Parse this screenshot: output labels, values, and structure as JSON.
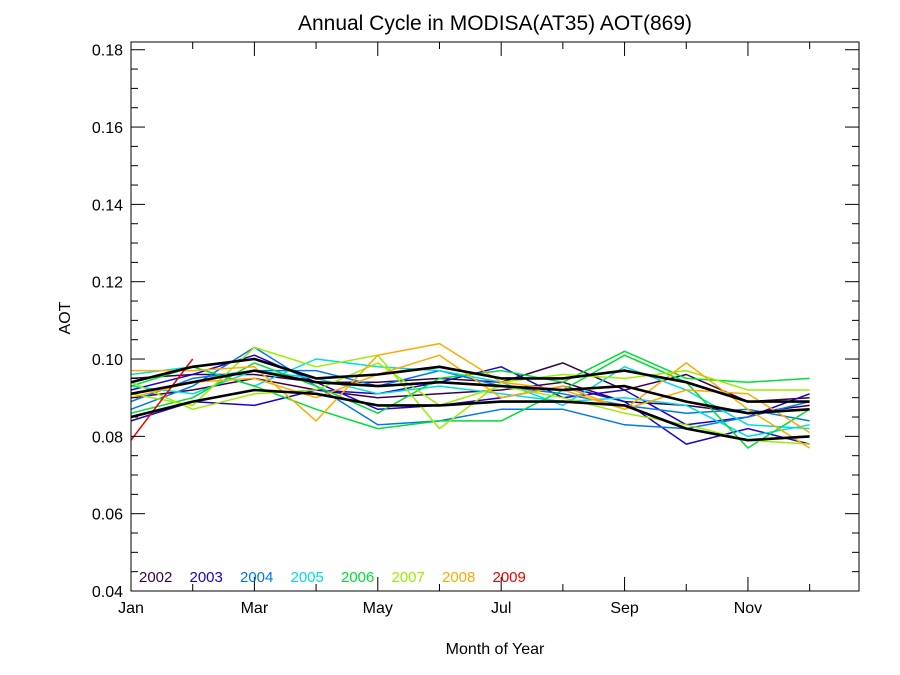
{
  "chart_data": {
    "type": "line",
    "title": "Annual Cycle in MODISA(AT35) AOT(869)",
    "xlabel": "Month of Year",
    "ylabel": "AOT",
    "xlim": [
      1,
      12.8
    ],
    "ylim": [
      0.04,
      0.182
    ],
    "x_ticks": [
      {
        "value": 1,
        "label": "Jan"
      },
      {
        "value": 3,
        "label": "Mar"
      },
      {
        "value": 5,
        "label": "May"
      },
      {
        "value": 7,
        "label": "Jul"
      },
      {
        "value": 9,
        "label": "Sep"
      },
      {
        "value": 11,
        "label": "Nov"
      }
    ],
    "y_ticks": [
      0.04,
      0.06,
      0.08,
      0.1,
      0.12,
      0.14,
      0.16,
      0.18
    ],
    "y_tick_labels": [
      "0.04",
      "0.06",
      "0.08",
      "0.10",
      "0.12",
      "0.14",
      "0.16",
      "0.18"
    ],
    "legend_placement": "bottom-left",
    "grid": false,
    "series": [
      {
        "name": "2002",
        "color": "#3a0048",
        "x": [
          1,
          2,
          3,
          4,
          5,
          6,
          7,
          8,
          9,
          10,
          11,
          12
        ],
        "values": [
          0.095,
          0.096,
          0.096,
          0.094,
          0.094,
          0.095,
          0.094,
          0.099,
          0.092,
          0.096,
          0.089,
          0.09
        ]
      },
      {
        "name": "2002",
        "color": "#3a0048",
        "x": [
          1,
          2,
          3,
          4,
          5,
          6,
          7,
          8,
          9,
          10,
          11,
          12
        ],
        "values": [
          0.09,
          0.092,
          0.095,
          0.092,
          0.09,
          0.091,
          0.092,
          0.094,
          0.089,
          0.088,
          0.086,
          0.088
        ]
      },
      {
        "name": "2003",
        "color": "#2200cc",
        "x": [
          1,
          2,
          3,
          4,
          5,
          6,
          7,
          8,
          9,
          10,
          11,
          12
        ],
        "values": [
          0.084,
          0.089,
          0.088,
          0.092,
          0.091,
          0.094,
          0.098,
          0.09,
          0.092,
          0.083,
          0.085,
          0.091
        ]
      },
      {
        "name": "2003",
        "color": "#2200cc",
        "x": [
          1,
          2,
          3,
          4,
          5,
          6,
          7,
          8,
          9,
          10,
          11,
          12
        ],
        "values": [
          0.092,
          0.096,
          0.101,
          0.094,
          0.087,
          0.088,
          0.09,
          0.093,
          0.089,
          0.078,
          0.082,
          0.078
        ]
      },
      {
        "name": "2004",
        "color": "#0077ee",
        "x": [
          1,
          2,
          3,
          4,
          5,
          6,
          7,
          8,
          9,
          10,
          11,
          12
        ],
        "values": [
          0.087,
          0.093,
          0.103,
          0.093,
          0.083,
          0.084,
          0.087,
          0.087,
          0.083,
          0.082,
          0.085,
          0.089
        ]
      },
      {
        "name": "2004",
        "color": "#0077ee",
        "x": [
          1,
          2,
          3,
          4,
          5,
          6,
          7,
          8,
          9,
          10,
          11,
          12
        ],
        "values": [
          0.089,
          0.095,
          0.097,
          0.097,
          0.093,
          0.097,
          0.093,
          0.091,
          0.088,
          0.086,
          0.087,
          0.084
        ]
      },
      {
        "name": "2005",
        "color": "#00dddd",
        "x": [
          1,
          2,
          3,
          4,
          5,
          6,
          7,
          8,
          9,
          10,
          11,
          12
        ],
        "values": [
          0.096,
          0.098,
          0.093,
          0.1,
          0.098,
          0.097,
          0.094,
          0.088,
          0.098,
          0.092,
          0.083,
          0.082
        ]
      },
      {
        "name": "2005",
        "color": "#00dddd",
        "x": [
          1,
          2,
          3,
          4,
          5,
          6,
          7,
          8,
          9,
          10,
          11,
          12
        ],
        "values": [
          0.093,
          0.091,
          0.097,
          0.095,
          0.091,
          0.093,
          0.091,
          0.089,
          0.09,
          0.088,
          0.08,
          0.083
        ]
      },
      {
        "name": "2006",
        "color": "#00dd33",
        "x": [
          1,
          2,
          3,
          4,
          5,
          6,
          7,
          8,
          9,
          10,
          11,
          12
        ],
        "values": [
          0.093,
          0.098,
          0.093,
          0.087,
          0.082,
          0.084,
          0.084,
          0.092,
          0.101,
          0.094,
          0.077,
          0.087
        ]
      },
      {
        "name": "2006",
        "color": "#00dd33",
        "x": [
          1,
          2,
          3,
          4,
          5,
          6,
          7,
          8,
          9,
          10,
          11,
          12
        ],
        "values": [
          0.086,
          0.09,
          0.099,
          0.093,
          0.086,
          0.095,
          0.097,
          0.094,
          0.102,
          0.095,
          0.094,
          0.095
        ]
      },
      {
        "name": "2007",
        "color": "#99ee00",
        "x": [
          1,
          2,
          3,
          4,
          5,
          6,
          7,
          8,
          9,
          10,
          11,
          12
        ],
        "values": [
          0.091,
          0.088,
          0.103,
          0.098,
          0.101,
          0.082,
          0.094,
          0.096,
          0.095,
          0.097,
          0.092,
          0.092
        ]
      },
      {
        "name": "2007",
        "color": "#99ee00",
        "x": [
          1,
          2,
          3,
          4,
          5,
          6,
          7,
          8,
          9,
          10,
          11,
          12
        ],
        "values": [
          0.094,
          0.087,
          0.091,
          0.092,
          0.099,
          0.088,
          0.093,
          0.09,
          0.086,
          0.083,
          0.079,
          0.078
        ]
      },
      {
        "name": "2008",
        "color": "#ffaa00",
        "x": [
          1,
          2,
          3,
          4,
          5,
          6,
          7,
          8,
          9,
          10,
          11,
          12
        ],
        "values": [
          0.097,
          0.097,
          0.098,
          0.084,
          0.101,
          0.104,
          0.094,
          0.092,
          0.087,
          0.099,
          0.087,
          0.077
        ]
      },
      {
        "name": "2008",
        "color": "#ffaa00",
        "x": [
          1,
          2,
          3,
          4,
          5,
          6,
          7,
          8,
          9,
          10,
          11,
          12
        ],
        "values": [
          0.09,
          0.094,
          0.095,
          0.09,
          0.096,
          0.101,
          0.09,
          0.093,
          0.087,
          0.092,
          0.091,
          0.081
        ]
      },
      {
        "name": "2009",
        "color": "#ee0000",
        "x": [
          1,
          2
        ],
        "values": [
          0.079,
          0.1
        ]
      },
      {
        "name": "",
        "color": "#000000",
        "x": [
          1,
          2,
          3,
          4,
          5,
          6,
          7,
          8,
          9,
          10,
          11,
          12
        ],
        "values": [
          0.094,
          0.098,
          0.1,
          0.095,
          0.096,
          0.098,
          0.095,
          0.095,
          0.097,
          0.094,
          0.089,
          0.089
        ]
      },
      {
        "name": "",
        "color": "#000000",
        "x": [
          1,
          2,
          3,
          4,
          5,
          6,
          7,
          8,
          9,
          10,
          11,
          12
        ],
        "values": [
          0.091,
          0.094,
          0.097,
          0.094,
          0.093,
          0.094,
          0.093,
          0.092,
          0.093,
          0.089,
          0.086,
          0.087
        ]
      },
      {
        "name": "",
        "color": "#000000",
        "x": [
          1,
          2,
          3,
          4,
          5,
          6,
          7,
          8,
          9,
          10,
          11,
          12
        ],
        "values": [
          0.085,
          0.089,
          0.092,
          0.091,
          0.088,
          0.088,
          0.089,
          0.089,
          0.088,
          0.082,
          0.079,
          0.08
        ]
      }
    ],
    "legend": [
      {
        "label": "2002",
        "color": "#3a0048"
      },
      {
        "label": "2003",
        "color": "#2200cc"
      },
      {
        "label": "2004",
        "color": "#0077ee"
      },
      {
        "label": "2005",
        "color": "#00dddd"
      },
      {
        "label": "2006",
        "color": "#00dd33"
      },
      {
        "label": "2007",
        "color": "#99ee00"
      },
      {
        "label": "2008",
        "color": "#ffaa00"
      },
      {
        "label": "2009",
        "color": "#ee0000"
      }
    ]
  }
}
